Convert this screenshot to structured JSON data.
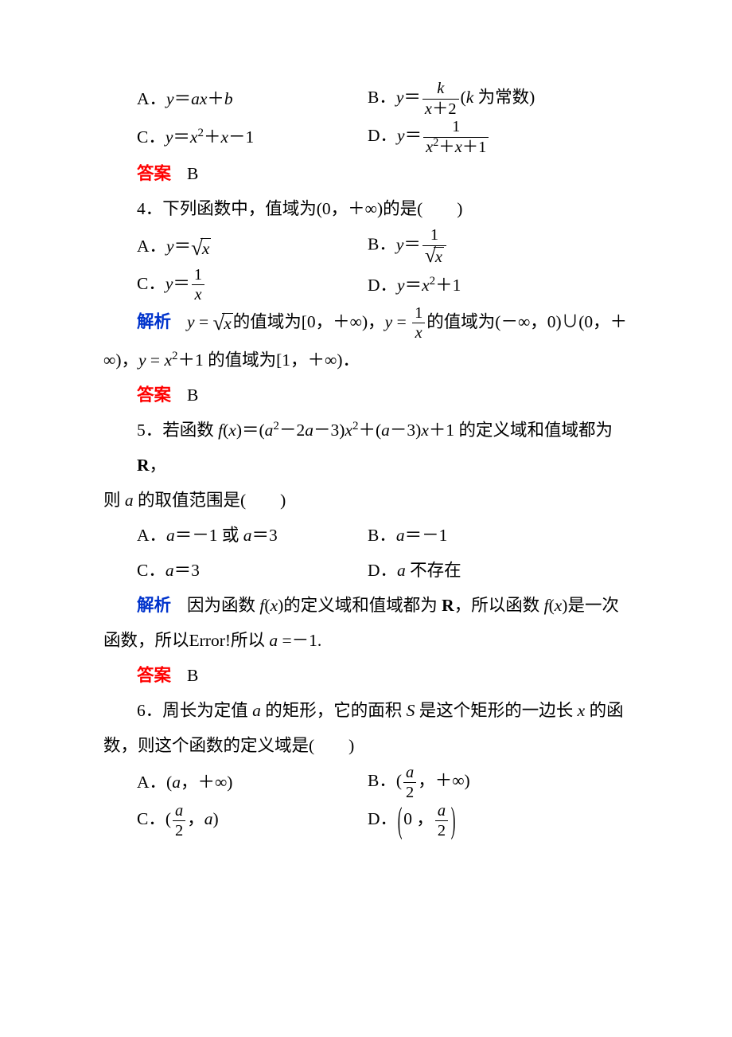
{
  "colors": {
    "answer": "#ff0000",
    "explain": "#0033cc",
    "text": "#000000",
    "background": "#ffffff"
  },
  "typography": {
    "body_fontsize_pt": 16,
    "line_height": 2.05,
    "font_family": "SimSun / Times New Roman"
  },
  "labels": {
    "answer": "答案",
    "explain": "解析"
  },
  "q3": {
    "A": {
      "prefix": "A．",
      "expr_html": "<span class='it'>y</span>＝<span class='it'>ax</span>＋<span class='it'>b</span>"
    },
    "B": {
      "prefix": "B．",
      "expr_html": "<span class='it'>y</span>＝<span class='frac'><span class='num'><span class='it'>k</span></span><span class='den'><span class='it'>x</span>＋2</span></span>(<span class='it'>k</span> 为常数)"
    },
    "C": {
      "prefix": "C．",
      "expr_html": "<span class='it'>y</span>＝<span class='it'>x</span><sup>2</sup>＋<span class='it'>x</span>－1"
    },
    "D": {
      "prefix": "D．",
      "expr_html": "<span class='it'>y</span>＝<span class='frac'><span class='num'>1</span><span class='den'><span class='it'>x</span><sup>2</sup>＋<span class='it'>x</span>＋1</span></span>"
    },
    "answer": "B"
  },
  "q4": {
    "stem": "4．下列函数中，值域为(0，＋∞)的是(  )",
    "A": {
      "prefix": "A．",
      "expr_html": "<span class='it'>y</span>＝<span class='sqrt'><span class='radsym'>√</span><span class='radicand'><span class='it'>x</span></span></span>"
    },
    "B": {
      "prefix": "B．",
      "expr_html": "<span class='it'>y</span>＝<span class='frac'><span class='num'>1</span><span class='den'><span class='sqrt'><span class='radsym'>√</span><span class='radicand'><span class='it'>x</span></span></span></span></span>"
    },
    "C": {
      "prefix": "C．",
      "expr_html": "<span class='it'>y</span>＝<span class='frac'><span class='num'>1</span><span class='den'><span class='it'>x</span></span></span>"
    },
    "D": {
      "prefix": "D．",
      "expr_html": "<span class='it'>y</span>＝<span class='it'>x</span><sup>2</sup>＋1"
    },
    "explain_html": "<span class='it'>y</span> = <span class='sqrt'><span class='radsym'>√</span><span class='radicand'><span class='it'>x</span></span></span>的值域为[0，＋∞)，<span class='it'>y</span> = <span class='frac'><span class='num'>1</span><span class='den'><span class='it'>x</span></span></span>的值域为(－∞，0)∪(0，＋",
    "explain_cont": "∞)，<span class='it'>y</span> = <span class='it'>x</span><sup>2</sup>＋1 的值域为[1，＋∞)．",
    "answer": "B"
  },
  "q5": {
    "stem_html": "5．若函数 <span class='it'>f</span>(<span class='it'>x</span>)＝(<span class='it'>a</span><sup>2</sup>－2<span class='it'>a</span>－3)<span class='it'>x</span><sup>2</sup>＋(<span class='it'>a</span>－3)<span class='it'>x</span>＋1 的定义域和值域都为 <span class='bold'>R</span>，",
    "stem2": "则 <span class='it'>a</span> 的取值范围是(  )",
    "A": {
      "prefix": "A．",
      "expr_html": "<span class='it'>a</span>＝－1 或 <span class='it'>a</span>＝3"
    },
    "B": {
      "prefix": "B．",
      "expr_html": "<span class='it'>a</span>＝－1"
    },
    "C": {
      "prefix": "C．",
      "expr_html": "<span class='it'>a</span>＝3"
    },
    "D": {
      "prefix": "D．",
      "expr_html": "<span class='it'>a</span> 不存在"
    },
    "explain_html": "因为函数 <span class='it'>f</span>(<span class='it'>x</span>)的定义域和值域都为 <span class='bold'>R</span>，所以函数 <span class='it'>f</span>(<span class='it'>x</span>)是一次",
    "explain_cont": "函数，所以Error!所以 <span class='it'>a</span> =－1.",
    "answer": "B"
  },
  "q6": {
    "stem_html": "6．周长为定值 <span class='it'>a</span> 的矩形，它的面积 <span class='it'>S</span> 是这个矩形的一边长 <span class='it'>x</span> 的函",
    "stem2": "数，则这个函数的定义域是(  )",
    "A": {
      "prefix": "A．",
      "expr_html": "(<span class='it'>a</span>，＋∞)"
    },
    "B": {
      "prefix": "B．",
      "expr_html": "(<span class='frac'><span class='num'><span class='it'>a</span></span><span class='den'>2</span></span>，＋∞)"
    },
    "C": {
      "prefix": "C．",
      "expr_html": "(<span class='frac'><span class='num'><span class='it'>a</span></span><span class='den'>2</span></span>，<span class='it'>a</span>)"
    },
    "D": {
      "prefix": "D．",
      "expr_html": "<span class='lparen'>(</span>0 ，<span class='frac'><span class='num'><span class='it'>a</span></span><span class='den'>2</span></span><span class='rparen'>)</span>"
    }
  }
}
